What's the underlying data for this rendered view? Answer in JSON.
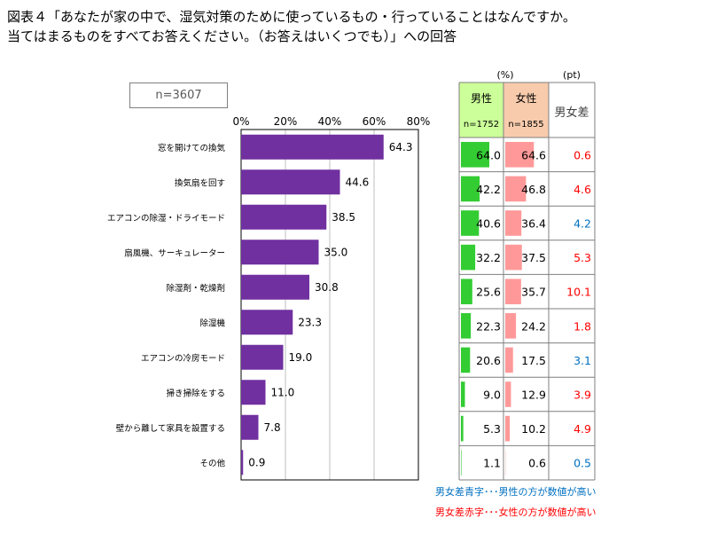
{
  "title": {
    "line1": "図表４「あなたが家の中で、湿気対策のために使っているもの・行っていることはなんですか。",
    "line2": "当てはまるものをすべてお答えください。（お答えはいくつでも）」への回答"
  },
  "sample_label": "n=3607",
  "colors": {
    "bar": "#7030a0",
    "male_bar": "#33cc33",
    "female_bar": "#ff9999",
    "male_header_bg": "#ccff99",
    "female_header_bg": "#f8cbad",
    "diff_blue": "#0070c0",
    "diff_red": "#ff0000"
  },
  "chart_data": {
    "type": "bar",
    "orientation": "horizontal",
    "categories": [
      "窓を開けての換気",
      "換気扇を回す",
      "エアコンの除湿・ドライモード",
      "扇風機、サーキュレーター",
      "除湿剤・乾燥剤",
      "除湿機",
      "エアコンの冷房モード",
      "掃き掃除をする",
      "壁から離して家具を設置する",
      "その他"
    ],
    "values": [
      64.3,
      44.6,
      38.5,
      35.0,
      30.8,
      23.3,
      19.0,
      11.0,
      7.8,
      0.9
    ],
    "value_labels": [
      "64.3",
      "44.6",
      "38.5",
      "35.0",
      "30.8",
      "23.3",
      "19.0",
      "11.0",
      "7.8",
      "0.9"
    ],
    "xlim": [
      0,
      80
    ],
    "xticks": [
      "0%",
      "20%",
      "40%",
      "60%",
      "80%"
    ],
    "grid": true
  },
  "table": {
    "unit_pct": "(%)",
    "unit_pt": "(pt)",
    "male_header": "男性",
    "male_n": "n=1752",
    "female_header": "女性",
    "female_n": "n=1855",
    "diff_header": "男女差",
    "male": [
      64.0,
      42.2,
      40.6,
      32.2,
      25.6,
      22.3,
      20.6,
      9.0,
      5.3,
      1.1
    ],
    "male_labels": [
      "64.0",
      "42.2",
      "40.6",
      "32.2",
      "25.6",
      "22.3",
      "20.6",
      "9.0",
      "5.3",
      "1.1"
    ],
    "female": [
      64.6,
      46.8,
      36.4,
      37.5,
      35.7,
      24.2,
      17.5,
      12.9,
      10.2,
      0.6
    ],
    "female_labels": [
      "64.6",
      "46.8",
      "36.4",
      "37.5",
      "35.7",
      "24.2",
      "17.5",
      "12.9",
      "10.2",
      "0.6"
    ],
    "diff_labels": [
      "0.6",
      "4.6",
      "4.2",
      "5.3",
      "10.1",
      "1.8",
      "3.1",
      "3.9",
      "4.9",
      "0.5"
    ],
    "diff_higher": [
      "female",
      "female",
      "male",
      "female",
      "female",
      "female",
      "male",
      "female",
      "female",
      "male"
    ],
    "bar_scale_max": 100
  },
  "notes": {
    "blue": "男女差青字･･･男性の方が数値が高い",
    "red": "男女差赤字･･･女性の方が数値が高い"
  }
}
